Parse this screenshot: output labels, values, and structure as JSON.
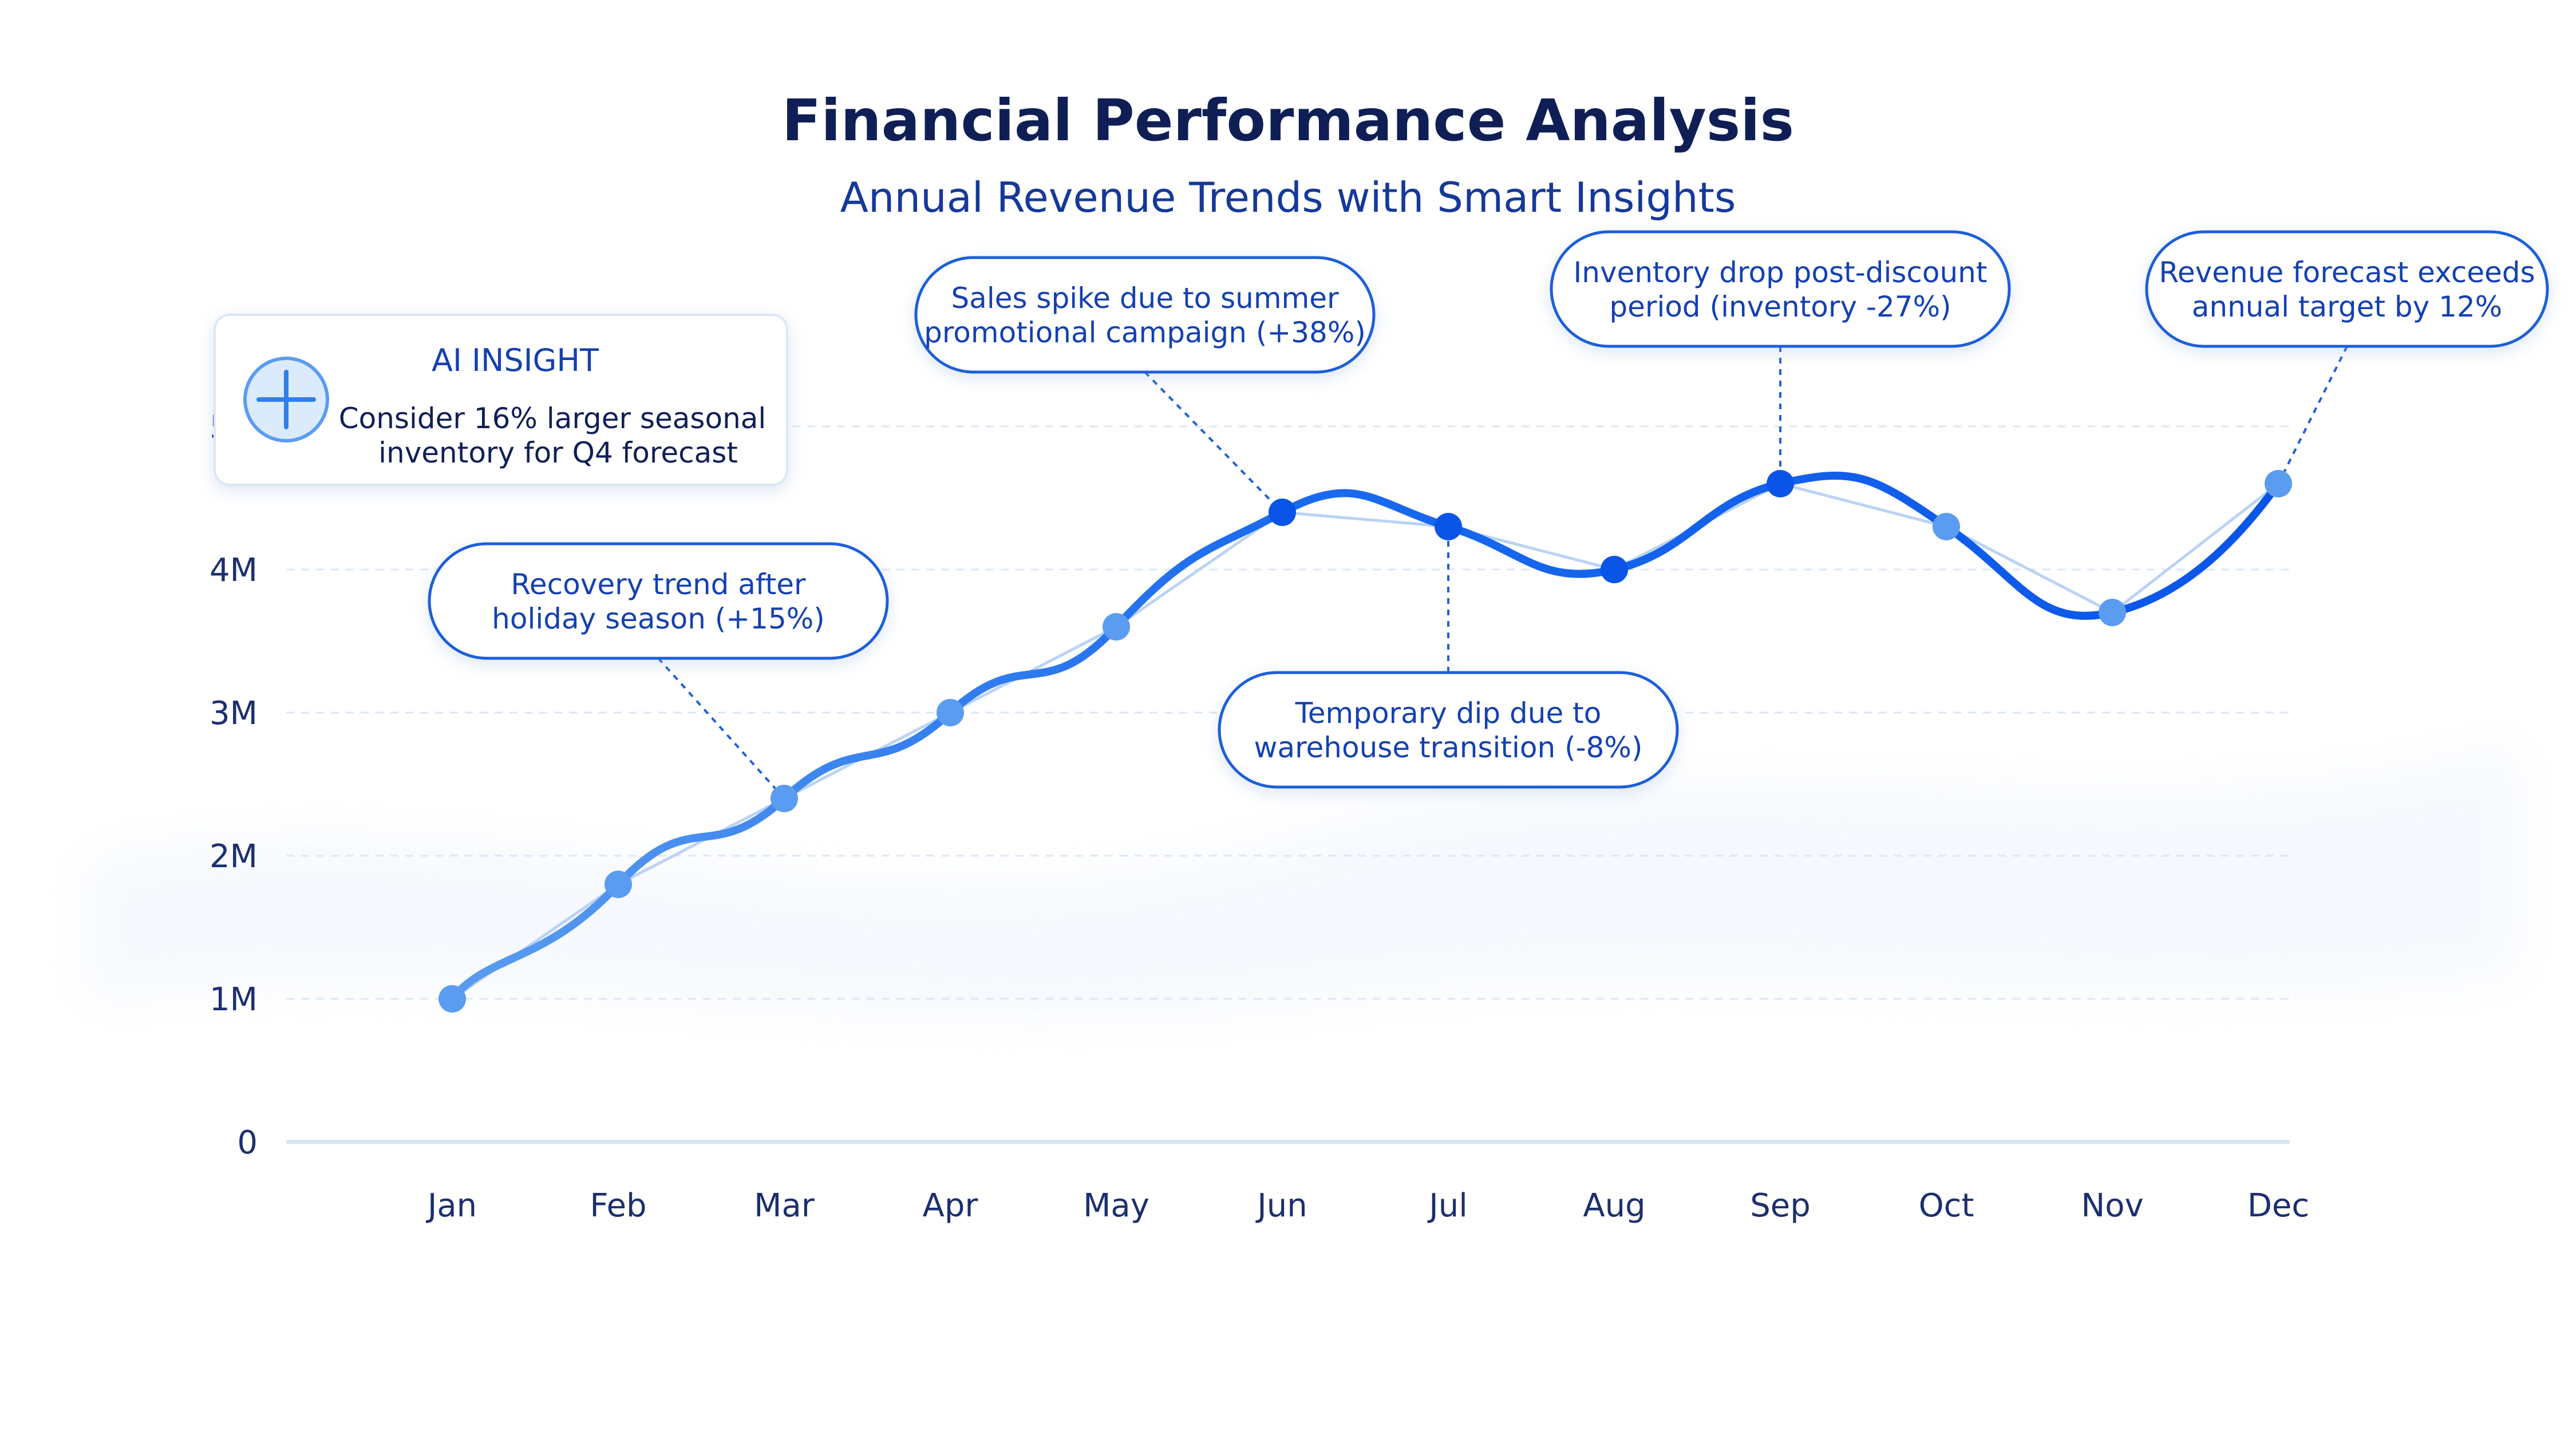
{
  "chart_data": {
    "type": "line",
    "title": "Financial Performance Analysis",
    "subtitle": "Annual Revenue Trends with Smart Insights",
    "xlabel": "",
    "ylabel": "",
    "categories": [
      "Jan",
      "Feb",
      "Mar",
      "Apr",
      "May",
      "Jun",
      "Jul",
      "Aug",
      "Sep",
      "Oct",
      "Nov",
      "Dec"
    ],
    "series": [
      {
        "values": [
          1.0,
          1.8,
          2.4,
          3.0,
          3.6,
          4.4,
          4.3,
          4.0,
          4.6,
          4.3,
          3.7,
          4.6
        ]
      }
    ],
    "ylim": [
      0,
      5
    ],
    "y_ticks": [
      {
        "value": 0,
        "label": "0"
      },
      {
        "value": 1,
        "label": "1M"
      },
      {
        "value": 2,
        "label": "2M"
      },
      {
        "value": 3,
        "label": "3M"
      },
      {
        "value": 4,
        "label": "4M"
      },
      {
        "value": 5,
        "label": "5M"
      }
    ],
    "grid": true,
    "colors": {
      "line": "#1a6bef",
      "point_light": "#5a9cf0",
      "point_dark": "#0a55e8",
      "callout_border": "#1f5fd8",
      "grid": "#dbe7f6",
      "axis": "#d6e6f7"
    },
    "highlighted_months": [
      "Jun",
      "Jul",
      "Aug",
      "Sep"
    ],
    "annotations": [
      {
        "category": "Mar",
        "lines": [
          "Recovery trend after",
          "holiday season (+15%)"
        ]
      },
      {
        "category": "Jun",
        "lines": [
          "Sales spike due to summer",
          "promotional campaign (+38%)"
        ]
      },
      {
        "category": "Jul",
        "lines": [
          "Temporary dip due to",
          "warehouse transition (-8%)"
        ]
      },
      {
        "category": "Sep",
        "lines": [
          "Inventory drop post-discount",
          "period (inventory -27%)"
        ]
      },
      {
        "category": "Dec",
        "lines": [
          "Revenue forecast exceeds",
          "annual target by 12%"
        ]
      }
    ],
    "insight": {
      "icon": "plus-circle-icon",
      "heading": "AI INSIGHT",
      "lines": [
        "Consider 16% larger seasonal",
        "inventory for Q4 forecast"
      ]
    }
  }
}
